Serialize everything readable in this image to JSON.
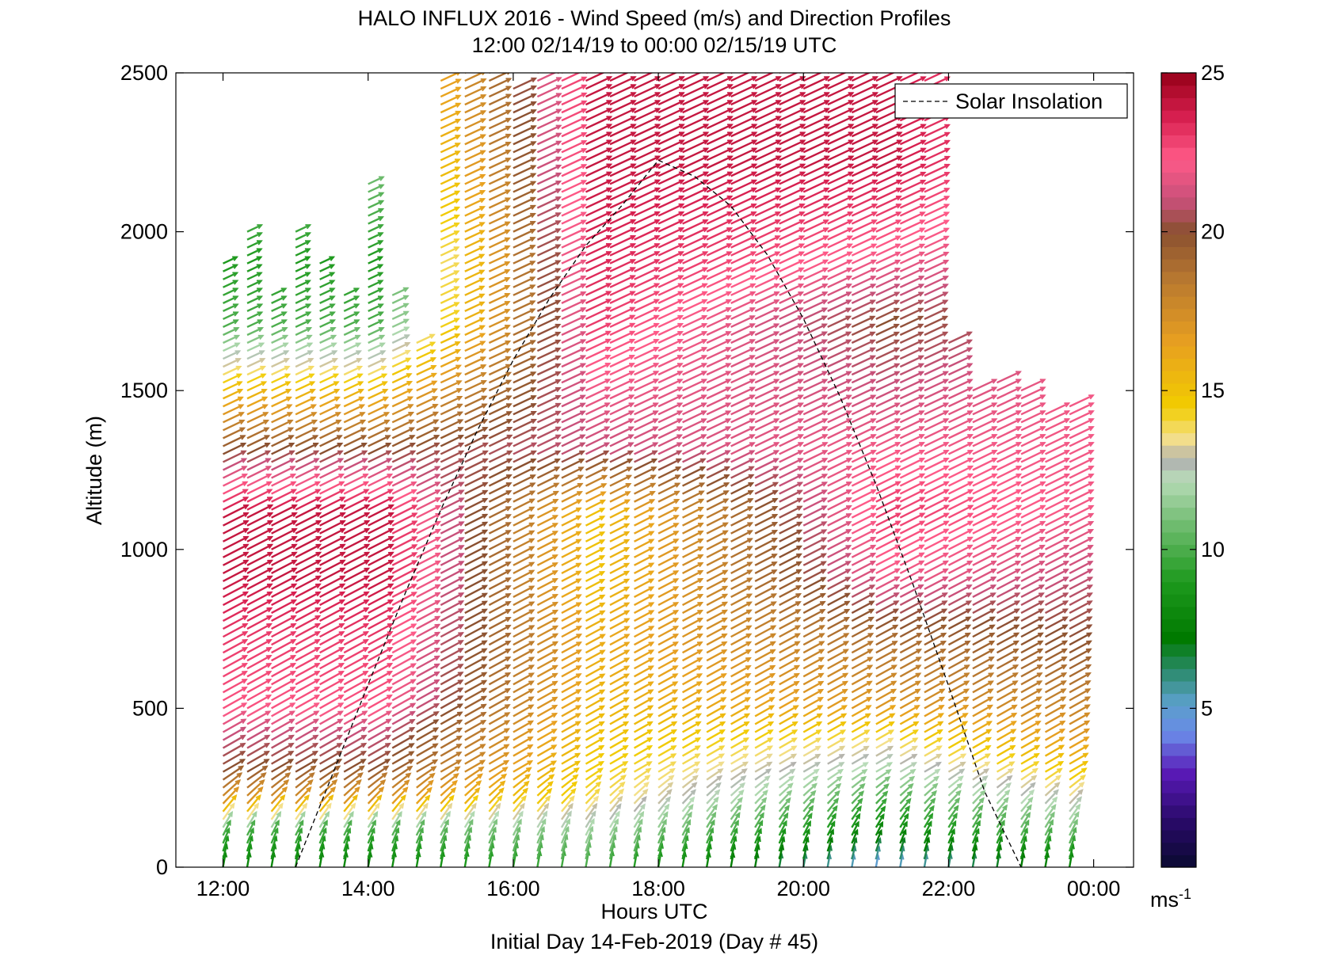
{
  "chart_data": {
    "type": "quiver",
    "title": "HALO INFLUX 2016 - Wind Speed (m/s) and Direction Profiles",
    "subtitle": "12:00 02/14/19 to 00:00 02/15/19  UTC",
    "xlabel": "Hours UTC",
    "ylabel": "Altitude (m)",
    "footer": "Initial Day 14-Feb-2019 (Day # 45)",
    "xlim": [
      11.35,
      24.55
    ],
    "ylim": [
      0,
      2500
    ],
    "x_ticks": [
      12,
      14,
      16,
      18,
      20,
      22,
      24
    ],
    "x_tick_labels": [
      "12:00",
      "14:00",
      "16:00",
      "18:00",
      "20:00",
      "22:00",
      "00:00"
    ],
    "y_ticks": [
      0,
      500,
      1000,
      1500,
      2000,
      2500
    ],
    "y_tick_labels": [
      "0",
      "500",
      "1000",
      "1500",
      "2000",
      "2500"
    ],
    "colorbar": {
      "range": [
        0,
        25
      ],
      "ticks": [
        5,
        10,
        15,
        20,
        25
      ],
      "tick_labels": [
        "5",
        "10",
        "15",
        "20",
        "25"
      ],
      "unit_label": "ms",
      "unit_exponent": "-1",
      "stops": [
        {
          "v": 0,
          "c": "#0a0a30"
        },
        {
          "v": 1.5,
          "c": "#2a0a6a"
        },
        {
          "v": 3,
          "c": "#5a1ab8"
        },
        {
          "v": 4.2,
          "c": "#6a8ae8"
        },
        {
          "v": 5.2,
          "c": "#5aa0c8"
        },
        {
          "v": 6.2,
          "c": "#2a8a6a"
        },
        {
          "v": 7.2,
          "c": "#007a00"
        },
        {
          "v": 9,
          "c": "#1e9a1e"
        },
        {
          "v": 11,
          "c": "#7ac07a"
        },
        {
          "v": 12.2,
          "c": "#b8dcb8"
        },
        {
          "v": 12.8,
          "c": "#b0b0b0"
        },
        {
          "v": 13.5,
          "c": "#f4e08a"
        },
        {
          "v": 14.5,
          "c": "#f2cc00"
        },
        {
          "v": 16.5,
          "c": "#e8a020"
        },
        {
          "v": 18.5,
          "c": "#b87830"
        },
        {
          "v": 20,
          "c": "#8a5030"
        },
        {
          "v": 21,
          "c": "#c8507a"
        },
        {
          "v": 22.3,
          "c": "#ff5a88"
        },
        {
          "v": 23.6,
          "c": "#d82050"
        },
        {
          "v": 25,
          "c": "#960018"
        }
      ]
    },
    "profile_times": [
      12.0,
      12.333,
      12.667,
      13.0,
      13.333,
      13.667,
      14.0,
      14.333,
      14.667,
      15.0,
      15.333,
      15.667,
      16.0,
      16.333,
      16.667,
      17.0,
      17.333,
      17.667,
      18.0,
      18.333,
      18.667,
      19.0,
      19.333,
      19.667,
      20.0,
      20.333,
      20.667,
      21.0,
      21.333,
      21.667,
      22.0,
      22.333,
      22.667,
      23.0,
      23.333,
      23.667
    ],
    "profile_tops_m": [
      1900,
      2000,
      1800,
      2000,
      1900,
      1800,
      2150,
      1800,
      1650,
      2500,
      2500,
      2500,
      2450,
      2500,
      2500,
      2500,
      2500,
      2500,
      2500,
      2500,
      2500,
      2500,
      2500,
      2500,
      2500,
      2500,
      2500,
      2500,
      2500,
      2500,
      1650,
      1500,
      1530,
      1500,
      1430,
      1450
    ],
    "range_gate_spacing_m": 25,
    "wind_speed_profile_ms": {
      "altitudes": [
        0,
        100,
        200,
        300,
        400,
        500,
        700,
        900,
        1100,
        1300,
        1500,
        1700,
        1900,
        2200,
        2500
      ],
      "early_12_14": [
        8,
        10,
        17,
        20,
        21,
        22.5,
        23,
        24,
        24,
        20,
        15,
        10,
        9,
        11,
        13
      ],
      "midday_16_18": [
        10,
        12,
        14,
        14.5,
        15,
        15.5,
        16,
        15,
        15,
        21,
        22,
        23,
        23.5,
        24,
        24
      ],
      "evening_20_22": [
        5,
        8,
        10,
        12,
        14,
        17,
        19,
        22,
        23,
        22,
        21,
        20,
        22,
        24,
        24
      ],
      "late_23_24": [
        8,
        11,
        13,
        15,
        17,
        18,
        20,
        21,
        22,
        22,
        22,
        21,
        21,
        21,
        21
      ]
    },
    "wind_direction_deg_from_north": {
      "surface": 190,
      "above_300m": 240,
      "above_1500m": 245
    },
    "series": [
      {
        "name": "Solar Insolation",
        "style": "dashed",
        "color": "#000000",
        "x": [
          13.0,
          13.5,
          14.0,
          14.5,
          15.0,
          15.5,
          16.0,
          16.5,
          17.0,
          17.5,
          18.0,
          18.5,
          19.0,
          19.5,
          20.0,
          20.5,
          21.0,
          21.5,
          22.0,
          22.5,
          23.0
        ],
        "y": [
          0,
          287,
          575,
          856,
          1124,
          1372,
          1596,
          1790,
          1956,
          2083,
          2225,
          2174,
          2081,
          1928,
          1726,
          1483,
          1204,
          897,
          571,
          237,
          0
        ]
      }
    ],
    "legend": {
      "entries": [
        "Solar Insolation"
      ],
      "location": "top-right"
    },
    "grid": false
  }
}
